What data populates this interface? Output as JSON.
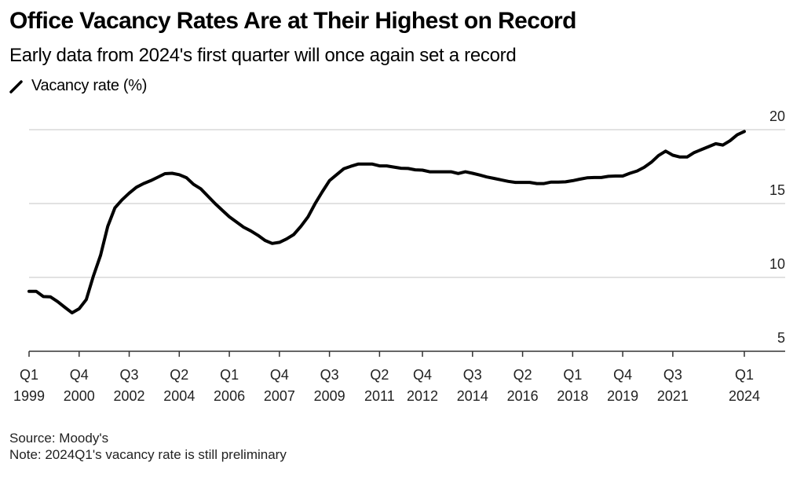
{
  "header": {
    "title": "Office Vacancy Rates Are at Their Highest on Record",
    "subtitle": "Early data from 2024's first quarter will once again set a record",
    "legend_label": "Vacancy rate (%)"
  },
  "footer": {
    "source": "Source: Moody's",
    "note": "Note: 2024Q1's vacancy rate is still preliminary"
  },
  "colors": {
    "line": "#000000",
    "grid": "#d9d9d9",
    "axis": "#333333"
  },
  "chart_data": {
    "type": "line",
    "title": "Office Vacancy Rates Are at Their Highest on Record",
    "subtitle": "Early data from 2024's first quarter will once again set a record",
    "xlabel": "",
    "ylabel": "Vacancy rate (%)",
    "ylim": [
      5,
      20
    ],
    "yticks": [
      5,
      10,
      15,
      20
    ],
    "ytick_labels": [
      "5",
      "10",
      "15",
      "20"
    ],
    "grid": true,
    "legend": "top-left",
    "x_start": "1999 Q1",
    "x_end": "2024 Q1",
    "frequency": "quarterly",
    "xticks": [
      {
        "index": 0,
        "q": "Q1",
        "year": "1999"
      },
      {
        "index": 7,
        "q": "Q4",
        "year": "2000"
      },
      {
        "index": 14,
        "q": "Q3",
        "year": "2002"
      },
      {
        "index": 21,
        "q": "Q2",
        "year": "2004"
      },
      {
        "index": 28,
        "q": "Q1",
        "year": "2006"
      },
      {
        "index": 35,
        "q": "Q4",
        "year": "2007"
      },
      {
        "index": 42,
        "q": "Q3",
        "year": "2009"
      },
      {
        "index": 49,
        "q": "Q2",
        "year": "2011"
      },
      {
        "index": 55,
        "q": "Q4",
        "year": "2012"
      },
      {
        "index": 62,
        "q": "Q3",
        "year": "2014"
      },
      {
        "index": 69,
        "q": "Q2",
        "year": "2016"
      },
      {
        "index": 76,
        "q": "Q1",
        "year": "2018"
      },
      {
        "index": 83,
        "q": "Q4",
        "year": "2019"
      },
      {
        "index": 90,
        "q": "Q3",
        "year": "2021"
      },
      {
        "index": 100,
        "q": "Q1",
        "year": "2024"
      }
    ],
    "series": [
      {
        "name": "Vacancy rate (%)",
        "values": [
          9.06,
          9.06,
          8.7,
          8.68,
          8.36,
          7.98,
          7.6,
          7.88,
          8.5,
          10.1,
          11.5,
          13.45,
          14.7,
          15.25,
          15.7,
          16.1,
          16.35,
          16.55,
          16.78,
          17.02,
          17.05,
          16.95,
          16.75,
          16.3,
          16.0,
          15.5,
          15.0,
          14.55,
          14.1,
          13.75,
          13.4,
          13.15,
          12.85,
          12.5,
          12.3,
          12.37,
          12.6,
          12.9,
          13.45,
          14.1,
          15.0,
          15.8,
          16.55,
          16.95,
          17.35,
          17.52,
          17.67,
          17.67,
          17.67,
          17.55,
          17.55,
          17.47,
          17.39,
          17.37,
          17.28,
          17.26,
          17.15,
          17.15,
          17.15,
          17.15,
          17.03,
          17.15,
          17.05,
          16.93,
          16.8,
          16.7,
          16.6,
          16.5,
          16.43,
          16.43,
          16.43,
          16.35,
          16.35,
          16.45,
          16.45,
          16.47,
          16.55,
          16.65,
          16.74,
          16.76,
          16.76,
          16.84,
          16.86,
          16.86,
          17.05,
          17.2,
          17.45,
          17.8,
          18.25,
          18.55,
          18.27,
          18.15,
          18.15,
          18.45,
          18.65,
          18.85,
          19.05,
          18.96,
          19.25,
          19.65,
          19.88
        ]
      }
    ]
  }
}
